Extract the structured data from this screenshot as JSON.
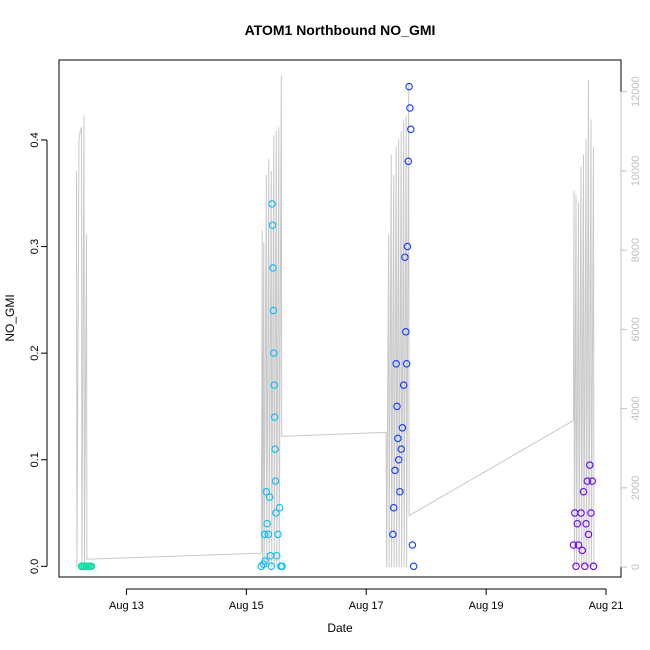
{
  "chart_data": {
    "type": "scatter",
    "title": "ATOM1 Northbound NO_GMI",
    "xlabel": "Date",
    "ylabel": "NO_GMI",
    "xlim": [
      "2022-08-11T21:00",
      "2022-08-21T06:00"
    ],
    "ylim": [
      -0.01,
      0.475
    ],
    "y2lim": [
      -250,
      12800
    ],
    "x_ticks": [
      "2022-08-13",
      "2022-08-15",
      "2022-08-17",
      "2022-08-19",
      "2022-08-21"
    ],
    "x_tick_labels": [
      "Aug 13",
      "Aug 15",
      "Aug 17",
      "Aug 19",
      "Aug 21"
    ],
    "y_ticks": [
      0.0,
      0.1,
      0.2,
      0.3,
      0.4
    ],
    "y_tick_labels": [
      "0.0",
      "0.1",
      "0.2",
      "0.3",
      "0.4"
    ],
    "y2_ticks": [
      0,
      2000,
      4000,
      6000,
      8000,
      10000,
      12000
    ],
    "y2_tick_labels": [
      "0",
      "2000",
      "4000",
      "6000",
      "8000",
      "10000",
      "12000"
    ],
    "grid": false,
    "legend": "none",
    "series": [
      {
        "color": "#00e5a8",
        "points": [
          [
            "2022-08-12T06:00",
            0.0
          ],
          [
            "2022-08-12T06:30",
            0.0
          ],
          [
            "2022-08-12T07:00",
            0.0
          ],
          [
            "2022-08-12T07:30",
            0.0
          ],
          [
            "2022-08-12T08:00",
            0.0
          ],
          [
            "2022-08-12T08:30",
            0.0
          ],
          [
            "2022-08-12T09:00",
            0.0
          ],
          [
            "2022-08-12T09:30",
            0.0
          ],
          [
            "2022-08-12T10:00",
            0.0
          ]
        ]
      },
      {
        "color": "#00bfff",
        "points": [
          [
            "2022-08-15T06:00",
            0.0
          ],
          [
            "2022-08-15T06:50",
            0.002
          ],
          [
            "2022-08-15T07:20",
            0.03
          ],
          [
            "2022-08-15T07:30",
            0.005
          ],
          [
            "2022-08-15T08:00",
            0.07
          ],
          [
            "2022-08-15T08:20",
            0.04
          ],
          [
            "2022-08-15T08:50",
            0.03
          ],
          [
            "2022-08-15T09:20",
            0.065
          ],
          [
            "2022-08-15T09:40",
            0.01
          ],
          [
            "2022-08-15T10:00",
            0.0
          ],
          [
            "2022-08-15T10:20",
            0.34
          ],
          [
            "2022-08-15T10:30",
            0.32
          ],
          [
            "2022-08-15T10:40",
            0.28
          ],
          [
            "2022-08-15T10:50",
            0.24
          ],
          [
            "2022-08-15T11:00",
            0.2
          ],
          [
            "2022-08-15T11:10",
            0.17
          ],
          [
            "2022-08-15T11:20",
            0.14
          ],
          [
            "2022-08-15T11:30",
            0.11
          ],
          [
            "2022-08-15T11:40",
            0.08
          ],
          [
            "2022-08-15T11:50",
            0.05
          ],
          [
            "2022-08-15T12:10",
            0.01
          ],
          [
            "2022-08-15T12:40",
            0.03
          ],
          [
            "2022-08-15T13:20",
            0.055
          ],
          [
            "2022-08-15T13:50",
            0.0
          ],
          [
            "2022-08-15T14:20",
            0.0
          ]
        ]
      },
      {
        "color": "#0a3cff",
        "points": [
          [
            "2022-08-17T10:40",
            0.03
          ],
          [
            "2022-08-17T11:00",
            0.055
          ],
          [
            "2022-08-17T11:30",
            0.09
          ],
          [
            "2022-08-17T12:00",
            0.19
          ],
          [
            "2022-08-17T12:20",
            0.15
          ],
          [
            "2022-08-17T12:40",
            0.12
          ],
          [
            "2022-08-17T13:00",
            0.1
          ],
          [
            "2022-08-17T13:30",
            0.07
          ],
          [
            "2022-08-17T14:00",
            0.11
          ],
          [
            "2022-08-17T14:30",
            0.13
          ],
          [
            "2022-08-17T15:00",
            0.17
          ],
          [
            "2022-08-17T15:30",
            0.29
          ],
          [
            "2022-08-17T15:50",
            0.22
          ],
          [
            "2022-08-17T16:10",
            0.19
          ],
          [
            "2022-08-17T16:30",
            0.3
          ],
          [
            "2022-08-17T16:50",
            0.38
          ],
          [
            "2022-08-17T17:10",
            0.45
          ],
          [
            "2022-08-17T17:30",
            0.43
          ],
          [
            "2022-08-17T17:50",
            0.41
          ],
          [
            "2022-08-17T18:30",
            0.02
          ],
          [
            "2022-08-17T19:00",
            0.0
          ]
        ]
      },
      {
        "color": "#6a00ff",
        "points": [
          [
            "2022-08-20T11:00",
            0.02
          ],
          [
            "2022-08-20T11:30",
            0.05
          ],
          [
            "2022-08-20T12:00",
            0.0
          ],
          [
            "2022-08-20T12:30",
            0.04
          ],
          [
            "2022-08-20T13:00",
            0.02
          ],
          [
            "2022-08-20T14:00",
            0.05
          ],
          [
            "2022-08-20T14:30",
            0.015
          ],
          [
            "2022-08-20T15:00",
            0.07
          ],
          [
            "2022-08-20T15:30",
            0.0
          ],
          [
            "2022-08-20T16:00",
            0.04
          ],
          [
            "2022-08-20T16:30",
            0.08
          ],
          [
            "2022-08-20T17:00",
            0.03
          ],
          [
            "2022-08-20T17:30",
            0.095
          ],
          [
            "2022-08-20T18:00",
            0.05
          ],
          [
            "2022-08-20T18:30",
            0.08
          ],
          [
            "2022-08-20T19:00",
            0.0
          ]
        ]
      }
    ],
    "secondary_line": {
      "axis": "right",
      "color": "#c8c8c8",
      "points": [
        [
          "2022-08-12T04:00",
          10000
        ],
        [
          "2022-08-12T04:10",
          0
        ],
        [
          "2022-08-12T05:00",
          10800
        ],
        [
          "2022-08-12T05:30",
          11000
        ],
        [
          "2022-08-12T06:00",
          11100
        ],
        [
          "2022-08-12T06:10",
          0
        ],
        [
          "2022-08-12T07:00",
          11400
        ],
        [
          "2022-08-12T07:10",
          0
        ],
        [
          "2022-08-12T08:00",
          8400
        ],
        [
          "2022-08-12T08:10",
          200
        ],
        [
          "2022-08-15T06:00",
          350
        ],
        [
          "2022-08-15T06:20",
          8500
        ],
        [
          "2022-08-15T06:30",
          0
        ],
        [
          "2022-08-15T07:00",
          8200
        ],
        [
          "2022-08-15T07:10",
          0
        ],
        [
          "2022-08-15T08:00",
          9900
        ],
        [
          "2022-08-15T08:10",
          0
        ],
        [
          "2022-08-15T09:00",
          10300
        ],
        [
          "2022-08-15T09:10",
          0
        ],
        [
          "2022-08-15T10:00",
          10000
        ],
        [
          "2022-08-15T10:10",
          0
        ],
        [
          "2022-08-15T11:00",
          10900
        ],
        [
          "2022-08-15T11:10",
          0
        ],
        [
          "2022-08-15T12:00",
          11000
        ],
        [
          "2022-08-15T12:10",
          0
        ],
        [
          "2022-08-15T13:00",
          11100
        ],
        [
          "2022-08-15T13:10",
          0
        ],
        [
          "2022-08-15T14:00",
          12400
        ],
        [
          "2022-08-15T14:10",
          3300
        ],
        [
          "2022-08-17T08:00",
          3400
        ],
        [
          "2022-08-17T08:10",
          0
        ],
        [
          "2022-08-17T09:00",
          8400
        ],
        [
          "2022-08-17T09:10",
          0
        ],
        [
          "2022-08-17T10:00",
          10400
        ],
        [
          "2022-08-17T10:10",
          0
        ],
        [
          "2022-08-17T11:00",
          9900
        ],
        [
          "2022-08-17T11:10",
          0
        ],
        [
          "2022-08-17T12:00",
          10600
        ],
        [
          "2022-08-17T12:10",
          0
        ],
        [
          "2022-08-17T13:00",
          10800
        ],
        [
          "2022-08-17T13:10",
          0
        ],
        [
          "2022-08-17T14:00",
          11000
        ],
        [
          "2022-08-17T14:10",
          0
        ],
        [
          "2022-08-17T15:00",
          11300
        ],
        [
          "2022-08-17T15:10",
          0
        ],
        [
          "2022-08-17T16:00",
          11400
        ],
        [
          "2022-08-17T16:10",
          0
        ],
        [
          "2022-08-17T17:00",
          12200
        ],
        [
          "2022-08-17T17:10",
          1300
        ],
        [
          "2022-08-20T11:00",
          3700
        ],
        [
          "2022-08-20T11:10",
          9500
        ],
        [
          "2022-08-20T11:20",
          0
        ],
        [
          "2022-08-20T12:00",
          9400
        ],
        [
          "2022-08-20T12:10",
          0
        ],
        [
          "2022-08-20T13:00",
          9200
        ],
        [
          "2022-08-20T13:10",
          0
        ],
        [
          "2022-08-20T14:00",
          10100
        ],
        [
          "2022-08-20T14:10",
          0
        ],
        [
          "2022-08-20T15:00",
          10400
        ],
        [
          "2022-08-20T15:10",
          0
        ],
        [
          "2022-08-20T16:00",
          10800
        ],
        [
          "2022-08-20T16:10",
          0
        ],
        [
          "2022-08-20T17:00",
          12300
        ],
        [
          "2022-08-20T17:10",
          0
        ],
        [
          "2022-08-20T18:00",
          11300
        ],
        [
          "2022-08-20T18:10",
          0
        ],
        [
          "2022-08-20T19:00",
          10600
        ],
        [
          "2022-08-20T19:10",
          0
        ]
      ]
    }
  }
}
